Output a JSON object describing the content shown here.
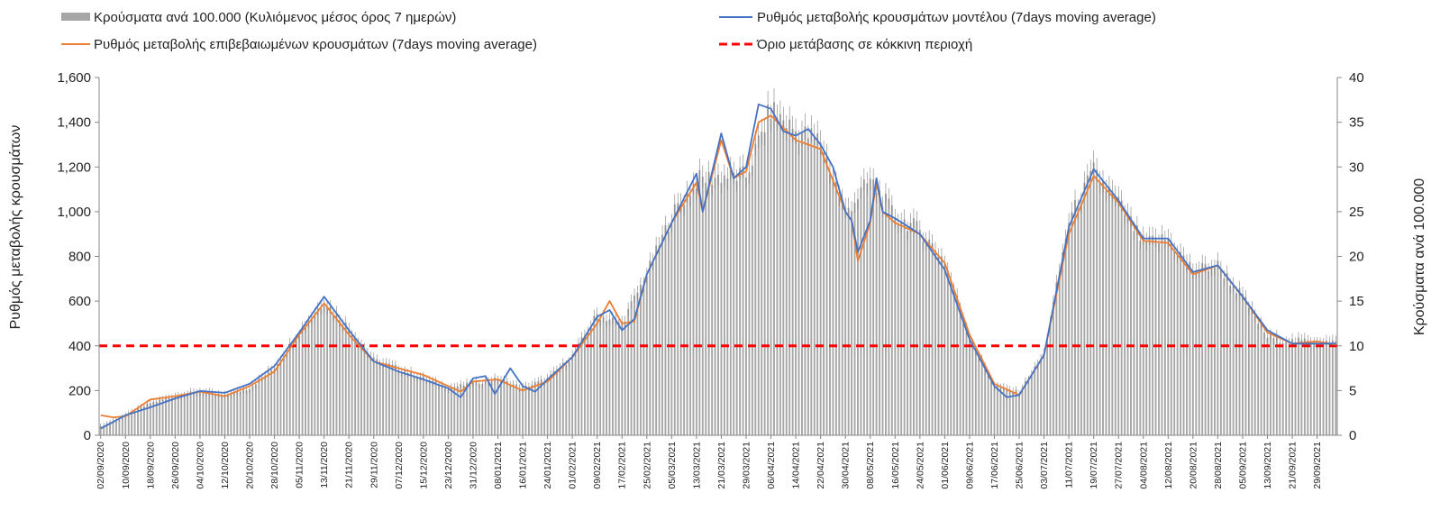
{
  "chart_data": {
    "type": "bar",
    "title": "",
    "ylabel": "Ρυθμός μεταβολής κρουσμάτων",
    "y2label": "Κρούσματα ανά 100.000",
    "ylim": [
      0,
      1600
    ],
    "y2lim": [
      0,
      40
    ],
    "yticks": [
      "0",
      "200",
      "400",
      "600",
      "800",
      "1,000",
      "1,200",
      "1,400",
      "1,600"
    ],
    "y2ticks": [
      "0",
      "5",
      "10",
      "15",
      "20",
      "25",
      "30",
      "35",
      "40"
    ],
    "x_start": "02/09/2020",
    "x_end": "05/10/2021",
    "x_labels": [
      "02/09/2020",
      "10/09/2020",
      "18/09/2020",
      "26/09/2020",
      "04/10/2020",
      "12/10/2020",
      "20/10/2020",
      "28/10/2020",
      "05/11/2020",
      "13/11/2020",
      "21/11/2020",
      "29/11/2020",
      "07/12/2020",
      "15/12/2020",
      "23/12/2020",
      "31/12/2020",
      "08/01/2021",
      "16/01/2021",
      "24/01/2021",
      "01/02/2021",
      "09/02/2021",
      "17/02/2021",
      "25/02/2021",
      "05/03/2021",
      "13/03/2021",
      "21/03/2021",
      "29/03/2021",
      "06/04/2021",
      "14/04/2021",
      "22/04/2021",
      "30/04/2021",
      "08/05/2021",
      "16/05/2021",
      "24/05/2021",
      "01/06/2021",
      "09/06/2021",
      "17/06/2021",
      "25/06/2021",
      "03/07/2021",
      "11/07/2021",
      "19/07/2021",
      "27/07/2021",
      "04/08/2021",
      "12/08/2021",
      "20/08/2021",
      "28/08/2021",
      "05/09/2021",
      "13/09/2021",
      "21/09/2021",
      "29/09/2021"
    ],
    "legend_position": "top",
    "threshold": {
      "name": "Όριο μετάβασης σε κόκκινη περιοχή",
      "value": 400,
      "color": "#ff0000"
    },
    "series": [
      {
        "name": "Κρούσματα ανά 100.000 (Κυλιόμενος μέσος όρος 7 ημερών)",
        "type": "bar",
        "axis": "right",
        "color": "#a6a6a6",
        "points": [
          [
            "02/09/2020",
            1.0
          ],
          [
            "10/09/2020",
            2.2
          ],
          [
            "18/09/2020",
            3.6
          ],
          [
            "26/09/2020",
            4.4
          ],
          [
            "04/10/2020",
            4.9
          ],
          [
            "12/10/2020",
            4.4
          ],
          [
            "20/10/2020",
            5.3
          ],
          [
            "28/10/2020",
            7.6
          ],
          [
            "05/11/2020",
            11.5
          ],
          [
            "13/11/2020",
            15.0
          ],
          [
            "21/11/2020",
            12.0
          ],
          [
            "29/11/2020",
            8.4
          ],
          [
            "07/12/2020",
            7.5
          ],
          [
            "15/12/2020",
            6.4
          ],
          [
            "23/12/2020",
            5.3
          ],
          [
            "31/12/2020",
            5.8
          ],
          [
            "08/01/2021",
            6.3
          ],
          [
            "16/01/2021",
            5.3
          ],
          [
            "24/01/2021",
            6.3
          ],
          [
            "01/02/2021",
            8.8
          ],
          [
            "09/02/2021",
            13.5
          ],
          [
            "17/02/2021",
            12.5
          ],
          [
            "25/02/2021",
            18.0
          ],
          [
            "05/03/2021",
            24.5
          ],
          [
            "13/03/2021",
            28.5
          ],
          [
            "21/03/2021",
            29.0
          ],
          [
            "29/03/2021",
            29.0
          ],
          [
            "06/04/2021",
            36.5
          ],
          [
            "14/04/2021",
            34.0
          ],
          [
            "22/04/2021",
            33.0
          ],
          [
            "30/04/2021",
            25.0
          ],
          [
            "08/05/2021",
            28.5
          ],
          [
            "16/05/2021",
            24.5
          ],
          [
            "24/05/2021",
            23.0
          ],
          [
            "01/06/2021",
            19.5
          ],
          [
            "09/06/2021",
            11.0
          ],
          [
            "17/06/2021",
            5.5
          ],
          [
            "25/06/2021",
            4.8
          ],
          [
            "03/07/2021",
            9.0
          ],
          [
            "11/07/2021",
            24.0
          ],
          [
            "19/07/2021",
            29.5
          ],
          [
            "27/07/2021",
            26.0
          ],
          [
            "04/08/2021",
            21.5
          ],
          [
            "12/08/2021",
            22.0
          ],
          [
            "20/08/2021",
            18.5
          ],
          [
            "28/08/2021",
            19.0
          ],
          [
            "05/09/2021",
            15.5
          ],
          [
            "13/09/2021",
            11.0
          ],
          [
            "21/09/2021",
            10.5
          ],
          [
            "29/09/2021",
            10.6
          ],
          [
            "05/10/2021",
            10.3
          ]
        ]
      },
      {
        "name": "Ρυθμός μεταβολής κρουσμάτων μοντέλου (7days moving average)",
        "type": "line",
        "axis": "left",
        "color": "#4472c4",
        "points": [
          [
            "02/09/2020",
            30
          ],
          [
            "10/09/2020",
            90
          ],
          [
            "18/09/2020",
            125
          ],
          [
            "26/09/2020",
            165
          ],
          [
            "04/10/2020",
            198
          ],
          [
            "12/10/2020",
            190
          ],
          [
            "20/10/2020",
            230
          ],
          [
            "28/10/2020",
            310
          ],
          [
            "05/11/2020",
            460
          ],
          [
            "13/11/2020",
            620
          ],
          [
            "21/11/2020",
            470
          ],
          [
            "29/11/2020",
            330
          ],
          [
            "07/12/2020",
            285
          ],
          [
            "15/12/2020",
            250
          ],
          [
            "23/12/2020",
            210
          ],
          [
            "27/12/2020",
            170
          ],
          [
            "31/12/2020",
            255
          ],
          [
            "04/01/2021",
            265
          ],
          [
            "07/01/2021",
            185
          ],
          [
            "12/01/2021",
            300
          ],
          [
            "16/01/2021",
            220
          ],
          [
            "20/01/2021",
            195
          ],
          [
            "24/01/2021",
            250
          ],
          [
            "01/02/2021",
            350
          ],
          [
            "09/02/2021",
            530
          ],
          [
            "13/02/2021",
            560
          ],
          [
            "17/02/2021",
            470
          ],
          [
            "21/02/2021",
            520
          ],
          [
            "25/02/2021",
            720
          ],
          [
            "05/03/2021",
            950
          ],
          [
            "13/03/2021",
            1170
          ],
          [
            "15/03/2021",
            1000
          ],
          [
            "21/03/2021",
            1350
          ],
          [
            "25/03/2021",
            1150
          ],
          [
            "29/03/2021",
            1200
          ],
          [
            "02/04/2021",
            1480
          ],
          [
            "06/04/2021",
            1460
          ],
          [
            "10/04/2021",
            1360
          ],
          [
            "14/04/2021",
            1340
          ],
          [
            "18/04/2021",
            1370
          ],
          [
            "22/04/2021",
            1300
          ],
          [
            "26/04/2021",
            1200
          ],
          [
            "30/04/2021",
            1000
          ],
          [
            "02/05/2021",
            960
          ],
          [
            "04/05/2021",
            820
          ],
          [
            "08/05/2021",
            960
          ],
          [
            "10/05/2021",
            1150
          ],
          [
            "12/05/2021",
            1000
          ],
          [
            "16/05/2021",
            970
          ],
          [
            "24/05/2021",
            900
          ],
          [
            "01/06/2021",
            740
          ],
          [
            "09/06/2021",
            430
          ],
          [
            "17/06/2021",
            220
          ],
          [
            "21/06/2021",
            170
          ],
          [
            "25/06/2021",
            180
          ],
          [
            "03/07/2021",
            360
          ],
          [
            "11/07/2021",
            930
          ],
          [
            "19/07/2021",
            1190
          ],
          [
            "27/07/2021",
            1050
          ],
          [
            "04/08/2021",
            880
          ],
          [
            "12/08/2021",
            880
          ],
          [
            "20/08/2021",
            730
          ],
          [
            "28/08/2021",
            760
          ],
          [
            "05/09/2021",
            620
          ],
          [
            "13/09/2021",
            470
          ],
          [
            "21/09/2021",
            410
          ],
          [
            "29/09/2021",
            410
          ],
          [
            "05/10/2021",
            410
          ]
        ]
      },
      {
        "name": "Ρυθμός μεταβολής επιβεβαιωμένων κρουσμάτων (7days moving average)",
        "type": "line",
        "axis": "left",
        "color": "#ed7d31",
        "points": [
          [
            "02/09/2020",
            90
          ],
          [
            "06/09/2020",
            80
          ],
          [
            "10/09/2020",
            85
          ],
          [
            "18/09/2020",
            160
          ],
          [
            "26/09/2020",
            175
          ],
          [
            "04/10/2020",
            195
          ],
          [
            "12/10/2020",
            175
          ],
          [
            "20/10/2020",
            220
          ],
          [
            "28/10/2020",
            285
          ],
          [
            "05/11/2020",
            450
          ],
          [
            "13/11/2020",
            590
          ],
          [
            "21/11/2020",
            450
          ],
          [
            "29/11/2020",
            330
          ],
          [
            "07/12/2020",
            300
          ],
          [
            "15/12/2020",
            270
          ],
          [
            "23/12/2020",
            220
          ],
          [
            "27/12/2020",
            195
          ],
          [
            "31/12/2020",
            240
          ],
          [
            "08/01/2021",
            250
          ],
          [
            "16/01/2021",
            200
          ],
          [
            "24/01/2021",
            240
          ],
          [
            "01/02/2021",
            350
          ],
          [
            "09/02/2021",
            500
          ],
          [
            "13/02/2021",
            600
          ],
          [
            "17/02/2021",
            500
          ],
          [
            "21/02/2021",
            510
          ],
          [
            "25/02/2021",
            720
          ],
          [
            "05/03/2021",
            950
          ],
          [
            "13/03/2021",
            1130
          ],
          [
            "15/03/2021",
            1000
          ],
          [
            "21/03/2021",
            1320
          ],
          [
            "25/03/2021",
            1150
          ],
          [
            "29/03/2021",
            1180
          ],
          [
            "02/04/2021",
            1400
          ],
          [
            "06/04/2021",
            1430
          ],
          [
            "14/04/2021",
            1320
          ],
          [
            "22/04/2021",
            1280
          ],
          [
            "30/04/2021",
            1000
          ],
          [
            "02/05/2021",
            960
          ],
          [
            "04/05/2021",
            780
          ],
          [
            "08/05/2021",
            950
          ],
          [
            "10/05/2021",
            1130
          ],
          [
            "12/05/2021",
            1000
          ],
          [
            "16/05/2021",
            950
          ],
          [
            "24/05/2021",
            900
          ],
          [
            "01/06/2021",
            770
          ],
          [
            "09/06/2021",
            450
          ],
          [
            "17/06/2021",
            230
          ],
          [
            "25/06/2021",
            180
          ],
          [
            "03/07/2021",
            360
          ],
          [
            "11/07/2021",
            900
          ],
          [
            "19/07/2021",
            1160
          ],
          [
            "27/07/2021",
            1040
          ],
          [
            "04/08/2021",
            870
          ],
          [
            "12/08/2021",
            860
          ],
          [
            "20/08/2021",
            720
          ],
          [
            "28/08/2021",
            760
          ],
          [
            "05/09/2021",
            620
          ],
          [
            "13/09/2021",
            460
          ],
          [
            "21/09/2021",
            410
          ],
          [
            "29/09/2021",
            420
          ],
          [
            "05/10/2021",
            405
          ]
        ]
      }
    ]
  }
}
